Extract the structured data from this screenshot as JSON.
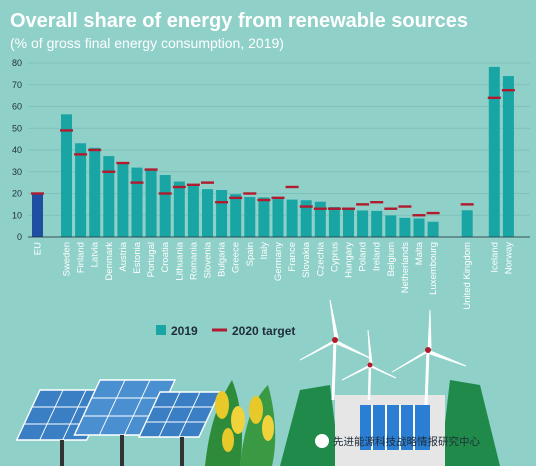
{
  "chart_data": {
    "type": "bar",
    "title": "Overall share of energy from renewable sources",
    "subtitle": "(% of gross final energy consumption, 2019)",
    "ylim": [
      0,
      80
    ],
    "yticks": [
      0,
      10,
      20,
      30,
      40,
      50,
      60,
      70,
      80
    ],
    "grid": true,
    "categories": [
      "EU",
      "Sweden",
      "Finland",
      "Latvia",
      "Denmark",
      "Austria",
      "Estonia",
      "Portugal",
      "Croatia",
      "Lithuania",
      "Romania",
      "Slovenia",
      "Bulgaria",
      "Greece",
      "Spain",
      "Italy",
      "Germany",
      "France",
      "Slovakia",
      "Czechia",
      "Cyprus",
      "Hungary",
      "Poland",
      "Ireland",
      "Belgium",
      "Netherlands",
      "Malta",
      "Luxembourg",
      "United Kingdom",
      "Iceland",
      "Norway"
    ],
    "series": [
      {
        "name": "2019",
        "values": [
          19.7,
          56.4,
          43.1,
          41.0,
          37.2,
          33.6,
          31.9,
          30.6,
          28.5,
          25.5,
          24.3,
          22.0,
          21.6,
          19.7,
          18.4,
          18.2,
          17.4,
          17.2,
          16.9,
          16.2,
          13.8,
          12.6,
          12.2,
          12.0,
          9.9,
          8.8,
          8.5,
          7.0,
          12.3,
          78.2,
          74.0
        ]
      },
      {
        "name": "2020 target",
        "values": [
          20,
          49,
          38,
          40,
          30,
          34,
          25,
          31,
          20,
          23,
          24,
          25,
          16,
          18,
          20,
          17,
          18,
          23,
          14,
          13,
          13,
          13,
          15,
          16,
          13,
          14,
          10,
          11,
          15,
          64,
          67.5
        ]
      }
    ],
    "colors": {
      "bar": "#1aa5a5",
      "eu_bar": "#1f4fa0",
      "target": "#b01c2e",
      "background": "#8fd0c9",
      "grid": "#7cbcb6"
    },
    "legend_position": "bottom-center"
  },
  "watermark": "先进能源科技战略情报研究中心"
}
